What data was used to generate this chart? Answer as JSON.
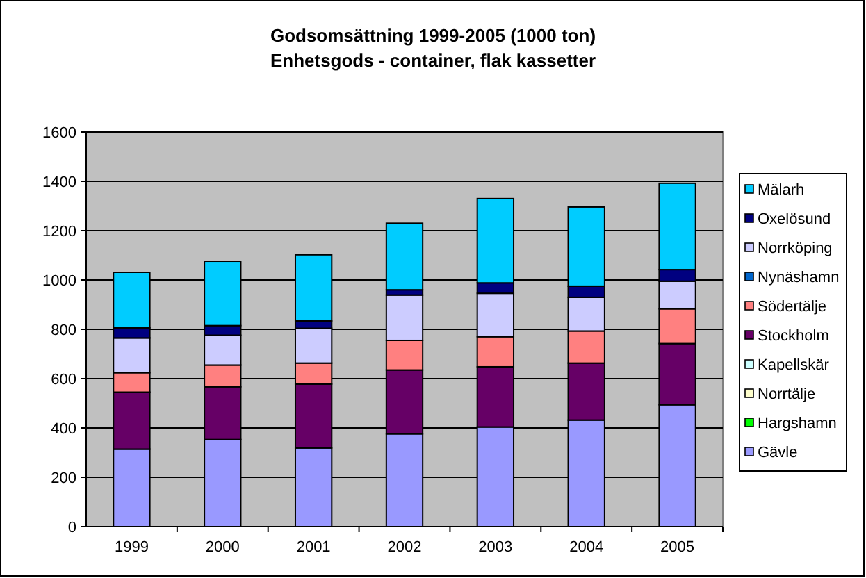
{
  "chart_data": {
    "type": "bar",
    "title": "Godsomsättning 1999-2005 (1000 ton)",
    "subtitle": "Enhetsgods - container, flak kassetter",
    "categories": [
      "1999",
      "2000",
      "2001",
      "2002",
      "2003",
      "2004",
      "2005"
    ],
    "stacked": true,
    "ylim": [
      0,
      1600
    ],
    "yticks": [
      0,
      200,
      400,
      600,
      800,
      1000,
      1200,
      1400,
      1600
    ],
    "grid": "y",
    "legend": "right",
    "series": [
      {
        "name": "Gävle",
        "color": "#9999ff",
        "values": [
          314,
          353,
          319,
          376,
          404,
          432,
          494
        ]
      },
      {
        "name": "Hargshamn",
        "color": "#00ff00",
        "values": [
          0,
          0,
          0,
          0,
          0,
          0,
          0
        ]
      },
      {
        "name": "Norrtälje",
        "color": "#ffffcc",
        "values": [
          0,
          0,
          0,
          0,
          0,
          0,
          0
        ]
      },
      {
        "name": "Kapellskär",
        "color": "#ccffff",
        "values": [
          0,
          0,
          0,
          0,
          0,
          0,
          0
        ]
      },
      {
        "name": "Stockholm",
        "color": "#660066",
        "values": [
          231,
          214,
          259,
          259,
          244,
          231,
          248
        ]
      },
      {
        "name": "Södertälje",
        "color": "#ff8080",
        "values": [
          79,
          88,
          85,
          120,
          122,
          130,
          141
        ]
      },
      {
        "name": "Nynäshamn",
        "color": "#0066cc",
        "values": [
          0,
          0,
          0,
          0,
          0,
          0,
          0
        ]
      },
      {
        "name": "Norrköping",
        "color": "#ccccff",
        "values": [
          141,
          121,
          141,
          184,
          176,
          137,
          112
        ]
      },
      {
        "name": "Oxelösund",
        "color": "#000080",
        "values": [
          41,
          39,
          30,
          21,
          42,
          45,
          47
        ]
      },
      {
        "name": "Mälarh",
        "color": "#00ccff",
        "values": [
          225,
          261,
          268,
          270,
          342,
          321,
          350
        ]
      }
    ]
  }
}
